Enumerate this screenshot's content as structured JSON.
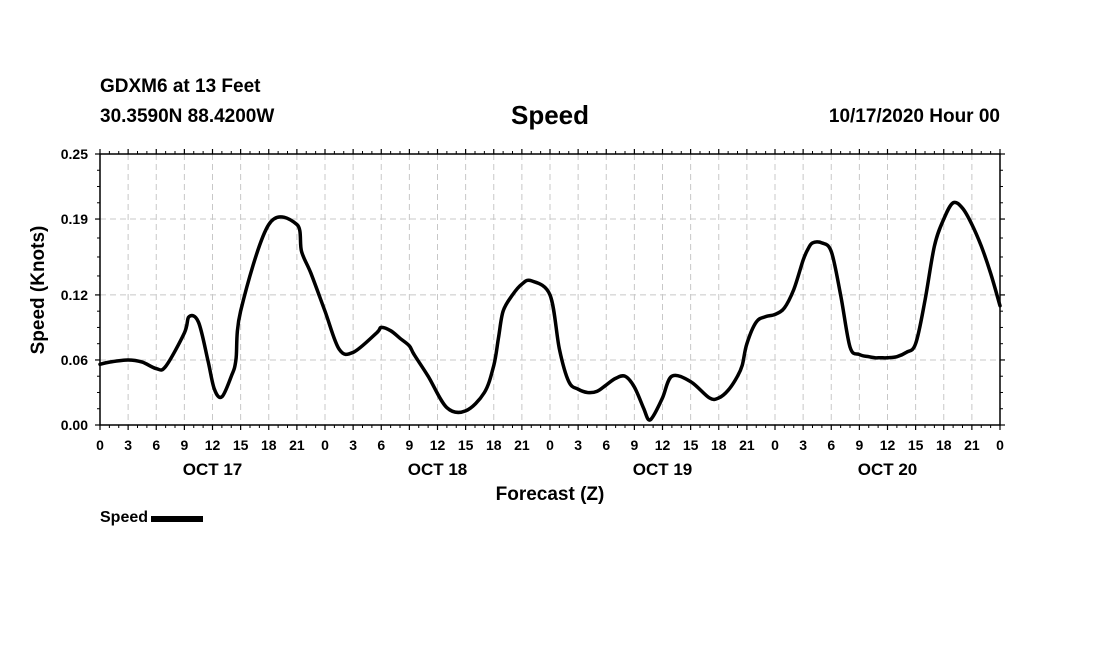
{
  "header": {
    "station": "GDXM6 at 13 Feet",
    "coords": "30.3590N 88.4200W",
    "title": "Speed",
    "runtime": "10/17/2020 Hour 00"
  },
  "chart_data": {
    "type": "line",
    "title": "Speed",
    "xlabel": "Forecast (Z)",
    "ylabel": "Speed (Knots)",
    "xlim": [
      0,
      96
    ],
    "ylim": [
      0,
      0.25
    ],
    "yticks": [
      "0.00",
      "0.06",
      "0.12",
      "0.19",
      "0.25"
    ],
    "xtick_labels": [
      "0",
      "3",
      "6",
      "9",
      "12",
      "15",
      "18",
      "21",
      "0",
      "3",
      "6",
      "9",
      "12",
      "15",
      "18",
      "21",
      "0",
      "3",
      "6",
      "9",
      "12",
      "15",
      "18",
      "21",
      "0",
      "3",
      "6",
      "9",
      "12",
      "15",
      "18",
      "21",
      "0"
    ],
    "day_labels": [
      "OCT 17",
      "OCT 18",
      "OCT 19",
      "OCT 20"
    ],
    "grid": true,
    "legend_position": "bottom-left",
    "series": [
      {
        "name": "Speed",
        "color": "#000000",
        "x": [
          0,
          1,
          3,
          4.5,
          6,
          7,
          9,
          9.5,
          10.5,
          11.5,
          12.2,
          13,
          14,
          14.5,
          15,
          18,
          21,
          21.5,
          22.5,
          24,
          25.5,
          27,
          29.5,
          30,
          31,
          32,
          33,
          33.5,
          35,
          37,
          39,
          41,
          42,
          42.5,
          43,
          44,
          45,
          46,
          48,
          49,
          50,
          51,
          52,
          53,
          54,
          55,
          56,
          57,
          58,
          58.5,
          59,
          60,
          61,
          63,
          65,
          66,
          67,
          68,
          68.5,
          69,
          70,
          71,
          72,
          73,
          74,
          75,
          75.5,
          76,
          77,
          78,
          79,
          80,
          81,
          82,
          82.7,
          83,
          83.5,
          84,
          85,
          86,
          87,
          88,
          89,
          90,
          91,
          92,
          93,
          94,
          95,
          96
        ],
        "y": [
          0.056,
          0.058,
          0.06,
          0.058,
          0.052,
          0.054,
          0.085,
          0.1,
          0.095,
          0.06,
          0.033,
          0.026,
          0.045,
          0.06,
          0.105,
          0.185,
          0.185,
          0.16,
          0.14,
          0.105,
          0.07,
          0.067,
          0.085,
          0.09,
          0.087,
          0.08,
          0.073,
          0.065,
          0.045,
          0.016,
          0.013,
          0.03,
          0.055,
          0.08,
          0.105,
          0.12,
          0.13,
          0.133,
          0.12,
          0.07,
          0.04,
          0.033,
          0.03,
          0.031,
          0.037,
          0.043,
          0.045,
          0.035,
          0.015,
          0.005,
          0.008,
          0.025,
          0.045,
          0.04,
          0.025,
          0.025,
          0.032,
          0.045,
          0.055,
          0.075,
          0.095,
          0.1,
          0.102,
          0.108,
          0.125,
          0.152,
          0.162,
          0.168,
          0.168,
          0.16,
          0.12,
          0.072,
          0.065,
          0.063,
          0.062,
          0.062,
          0.062,
          0.062,
          0.063,
          0.067,
          0.075,
          0.115,
          0.165,
          0.19,
          0.205,
          0.2,
          0.185,
          0.165,
          0.14,
          0.11
        ]
      }
    ]
  },
  "legend": {
    "label": "Speed"
  }
}
